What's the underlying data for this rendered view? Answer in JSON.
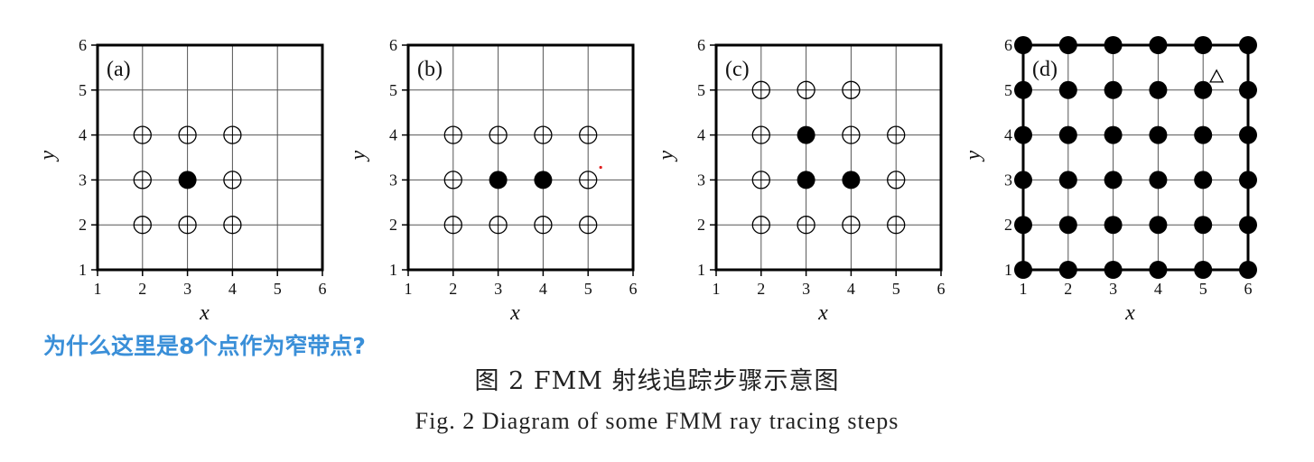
{
  "annotation": "为什么这里是8个点作为窄带点?",
  "caption_cn": "图 2   FMM 射线追踪步骤示意图",
  "caption_en": "Fig. 2   Diagram of some FMM ray tracing steps",
  "colors": {
    "annotation": "#3a8fd8",
    "marker_fill": "#000000",
    "grid": "#555555",
    "red_dot": "#e02020"
  },
  "chart_data": [
    {
      "type": "scatter",
      "panel_label": "(a)",
      "xlabel": "x",
      "ylabel": "y",
      "xlim": [
        1,
        6
      ],
      "ylim": [
        1,
        6
      ],
      "grid": true,
      "x_ticks": [
        1,
        2,
        3,
        4,
        5,
        6
      ],
      "y_ticks": [
        1,
        2,
        3,
        4,
        5,
        6
      ],
      "open_points": [
        [
          2,
          2
        ],
        [
          3,
          2
        ],
        [
          4,
          2
        ],
        [
          2,
          3
        ],
        [
          4,
          3
        ],
        [
          2,
          4
        ],
        [
          3,
          4
        ],
        [
          4,
          4
        ]
      ],
      "filled_points": [
        [
          3,
          3
        ]
      ]
    },
    {
      "type": "scatter",
      "panel_label": "(b)",
      "xlabel": "x",
      "ylabel": "y",
      "xlim": [
        1,
        6
      ],
      "ylim": [
        1,
        6
      ],
      "grid": true,
      "x_ticks": [
        1,
        2,
        3,
        4,
        5,
        6
      ],
      "y_ticks": [
        1,
        2,
        3,
        4,
        5,
        6
      ],
      "open_points": [
        [
          2,
          2
        ],
        [
          3,
          2
        ],
        [
          4,
          2
        ],
        [
          5,
          2
        ],
        [
          2,
          3
        ],
        [
          5,
          3
        ],
        [
          2,
          4
        ],
        [
          3,
          4
        ],
        [
          4,
          4
        ],
        [
          5,
          4
        ]
      ],
      "filled_points": [
        [
          3,
          3
        ],
        [
          4,
          3
        ]
      ],
      "red_dot": [
        5.28,
        3.28
      ]
    },
    {
      "type": "scatter",
      "panel_label": "(c)",
      "xlabel": "x",
      "ylabel": "y",
      "xlim": [
        1,
        6
      ],
      "ylim": [
        1,
        6
      ],
      "grid": true,
      "x_ticks": [
        1,
        2,
        3,
        4,
        5,
        6
      ],
      "y_ticks": [
        1,
        2,
        3,
        4,
        5,
        6
      ],
      "open_points": [
        [
          2,
          2
        ],
        [
          3,
          2
        ],
        [
          4,
          2
        ],
        [
          5,
          2
        ],
        [
          2,
          3
        ],
        [
          5,
          3
        ],
        [
          2,
          4
        ],
        [
          4,
          4
        ],
        [
          5,
          4
        ],
        [
          2,
          5
        ],
        [
          3,
          5
        ],
        [
          4,
          5
        ]
      ],
      "filled_points": [
        [
          3,
          3
        ],
        [
          4,
          3
        ],
        [
          3,
          4
        ]
      ]
    },
    {
      "type": "scatter",
      "panel_label": "(d)",
      "xlabel": "x",
      "ylabel": "y",
      "xlim": [
        1,
        6
      ],
      "ylim": [
        1,
        6
      ],
      "grid": true,
      "x_ticks": [
        1,
        2,
        3,
        4,
        5,
        6
      ],
      "y_ticks": [
        1,
        2,
        3,
        4,
        5,
        6
      ],
      "open_points": [],
      "filled_points": [
        [
          1,
          1
        ],
        [
          2,
          1
        ],
        [
          3,
          1
        ],
        [
          4,
          1
        ],
        [
          5,
          1
        ],
        [
          6,
          1
        ],
        [
          1,
          2
        ],
        [
          2,
          2
        ],
        [
          3,
          2
        ],
        [
          4,
          2
        ],
        [
          5,
          2
        ],
        [
          6,
          2
        ],
        [
          1,
          3
        ],
        [
          2,
          3
        ],
        [
          3,
          3
        ],
        [
          4,
          3
        ],
        [
          5,
          3
        ],
        [
          6,
          3
        ],
        [
          1,
          4
        ],
        [
          2,
          4
        ],
        [
          3,
          4
        ],
        [
          4,
          4
        ],
        [
          5,
          4
        ],
        [
          6,
          4
        ],
        [
          1,
          5
        ],
        [
          2,
          5
        ],
        [
          3,
          5
        ],
        [
          4,
          5
        ],
        [
          5,
          5
        ],
        [
          6,
          5
        ],
        [
          1,
          6
        ],
        [
          2,
          6
        ],
        [
          3,
          6
        ],
        [
          4,
          6
        ],
        [
          5,
          6
        ],
        [
          6,
          6
        ]
      ],
      "triangle": [
        5.3,
        5.3
      ]
    }
  ]
}
